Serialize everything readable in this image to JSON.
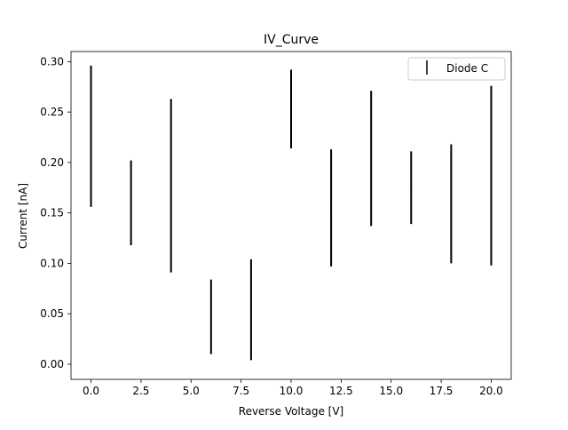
{
  "chart_data": {
    "type": "scatter",
    "title": "IV_Curve",
    "xlabel": "Reverse Voltage [V]",
    "ylabel": "Current [nA]",
    "xlim": [
      -1.0,
      21.0
    ],
    "ylim": [
      -0.015,
      0.31
    ],
    "xticks": [
      0.0,
      2.5,
      5.0,
      7.5,
      10.0,
      12.5,
      15.0,
      17.5,
      20.0
    ],
    "xtick_labels": [
      "0.0",
      "2.5",
      "5.0",
      "7.5",
      "10.0",
      "12.5",
      "15.0",
      "17.5",
      "20.0"
    ],
    "yticks": [
      0.0,
      0.05,
      0.1,
      0.15,
      0.2,
      0.25,
      0.3
    ],
    "ytick_labels": [
      "0.00",
      "0.05",
      "0.10",
      "0.15",
      "0.20",
      "0.25",
      "0.30"
    ],
    "grid": false,
    "legend": {
      "position": "top-right",
      "entries": [
        "Diode C"
      ]
    },
    "series": [
      {
        "name": "Diode C",
        "color": "#000000",
        "marker": "errorbar",
        "x": [
          0,
          2,
          4,
          6,
          8,
          10,
          12,
          14,
          16,
          18,
          20
        ],
        "y": [
          0.226,
          0.16,
          0.177,
          0.047,
          0.054,
          0.253,
          0.155,
          0.204,
          0.175,
          0.159,
          0.187
        ],
        "yerr": [
          0.07,
          0.042,
          0.086,
          0.037,
          0.05,
          0.039,
          0.058,
          0.067,
          0.036,
          0.059,
          0.089
        ]
      }
    ]
  }
}
